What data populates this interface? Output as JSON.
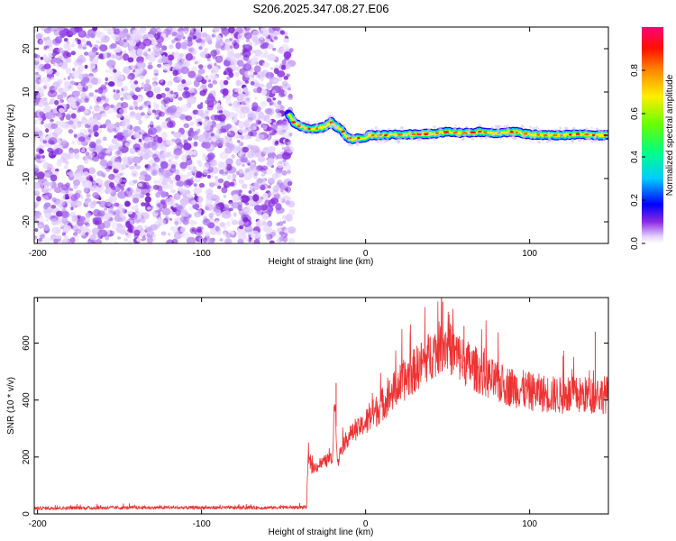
{
  "title": "S206.2025.347.08.27.E06",
  "chart_data": [
    {
      "type": "heatmap",
      "xlabel": "Height of straight line (km)",
      "ylabel": "Frequency (Hz)",
      "xlim": [
        -202,
        148
      ],
      "ylim": [
        -25,
        25
      ],
      "xticks": [
        -200,
        -100,
        0,
        100
      ],
      "yticks": [
        -20,
        -10,
        0,
        10,
        20
      ],
      "noise_region_x": [
        -202,
        -45
      ],
      "ridge": {
        "x": [
          -47,
          -44,
          -40,
          -35,
          -30,
          -25,
          -21,
          -18,
          -15,
          -12,
          -9,
          -5,
          -2,
          2,
          10,
          25,
          40,
          50,
          60,
          70,
          80,
          90,
          100,
          110,
          120,
          130,
          140,
          148
        ],
        "y": [
          5,
          3,
          2,
          1.5,
          1.5,
          2,
          3,
          2,
          1.5,
          0,
          -1,
          -0.5,
          -1,
          0,
          0,
          0.2,
          0.3,
          0.8,
          0.5,
          0.8,
          0.5,
          0.8,
          0.2,
          0,
          0,
          0.3,
          0,
          0
        ]
      },
      "colorbar": {
        "label": "Normalized spectral amplitude",
        "range": [
          0,
          1
        ],
        "ticks": [
          "0.0",
          "0.2",
          "0.4",
          "0.6",
          "0.8"
        ],
        "tick_values": [
          0,
          0.2,
          0.4,
          0.6,
          0.8
        ]
      }
    },
    {
      "type": "line",
      "xlabel": "Height of straight line (km)",
      "ylabel": "SNR (10 * v/v)",
      "xlim": [
        -202,
        148
      ],
      "ylim": [
        0,
        760
      ],
      "xticks": [
        -200,
        -100,
        0,
        100
      ],
      "yticks": [
        0,
        200,
        400,
        600
      ],
      "color": "#ee3333",
      "envelope": {
        "x": [
          -202,
          -150,
          -100,
          -60,
          -36,
          -35,
          -33,
          -30,
          -25,
          -20,
          -19,
          -17,
          -15,
          -10,
          0,
          20,
          40,
          48,
          60,
          80,
          100,
          120,
          148
        ],
        "y": [
          20,
          22,
          22,
          22,
          24,
          200,
          160,
          165,
          185,
          195,
          440,
          175,
          230,
          275,
          320,
          450,
          560,
          600,
          535,
          460,
          430,
          415,
          420
        ]
      },
      "spikes": [
        {
          "x": -18,
          "y": 460
        },
        {
          "x": 47,
          "y": 745
        },
        {
          "x": 60,
          "y": 660
        },
        {
          "x": 140,
          "y": 640
        }
      ]
    }
  ]
}
